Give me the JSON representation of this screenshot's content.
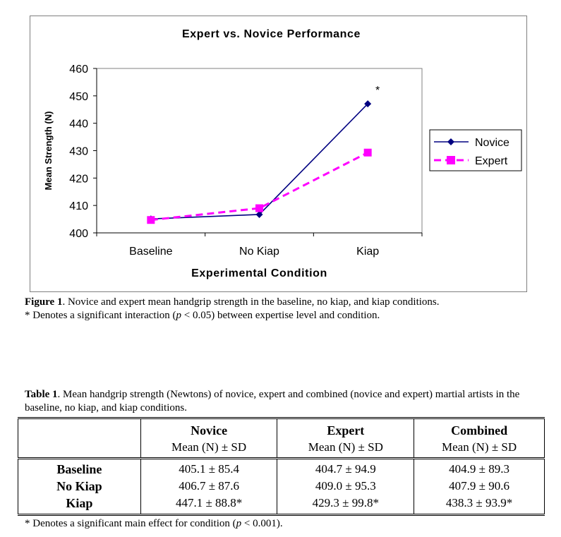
{
  "chart_data": {
    "type": "line",
    "title": "Expert vs. Novice Performance",
    "xlabel": "Experimental Condition",
    "ylabel": "Mean Strength (N)",
    "categories": [
      "Baseline",
      "No Kiap",
      "Kiap"
    ],
    "ylim": [
      400,
      460
    ],
    "yticks": [
      400,
      410,
      420,
      430,
      440,
      450,
      460
    ],
    "series": [
      {
        "name": "Novice",
        "values": [
          405.1,
          406.7,
          447.1
        ],
        "color": "#000080",
        "marker": "diamond",
        "line": "solid"
      },
      {
        "name": "Expert",
        "values": [
          404.7,
          409.0,
          429.3
        ],
        "color": "#ff00ff",
        "marker": "square",
        "line": "dashed"
      }
    ],
    "annotation": "*",
    "legend_position": "right",
    "grid": false
  },
  "figure_caption": {
    "label": "Figure 1",
    "text": ".  Novice and expert mean handgrip strength in the baseline, no kiap, and kiap conditions.",
    "note_prefix": "* Denotes a significant interaction (",
    "note_p": "p",
    "note_suffix": " < 0.05) between expertise level and condition."
  },
  "table": {
    "caption_label": "Table 1",
    "caption_text": ".  Mean handgrip strength (Newtons) of novice, expert and combined (novice and expert) martial artists in the baseline, no kiap, and kiap conditions.",
    "headers": [
      "Novice",
      "Expert",
      "Combined"
    ],
    "subheaders": [
      "Mean (N) ± SD",
      "Mean (N) ± SD",
      "Mean (N) ± SD"
    ],
    "rows": [
      {
        "label": "Baseline",
        "cells": [
          "405.1 ± 85.4",
          "404.7 ± 94.9",
          "404.9 ± 89.3"
        ]
      },
      {
        "label": "No Kiap",
        "cells": [
          "406.7 ± 87.6",
          "409.0 ± 95.3",
          "407.9 ± 90.6"
        ]
      },
      {
        "label": "Kiap",
        "cells": [
          "447.1 ± 88.8*",
          "429.3 ± 99.8*",
          "438.3 ± 93.9*"
        ]
      }
    ],
    "note_prefix": "* Denotes a significant main effect for condition (",
    "note_p": "p",
    "note_suffix": " < 0.001)."
  }
}
